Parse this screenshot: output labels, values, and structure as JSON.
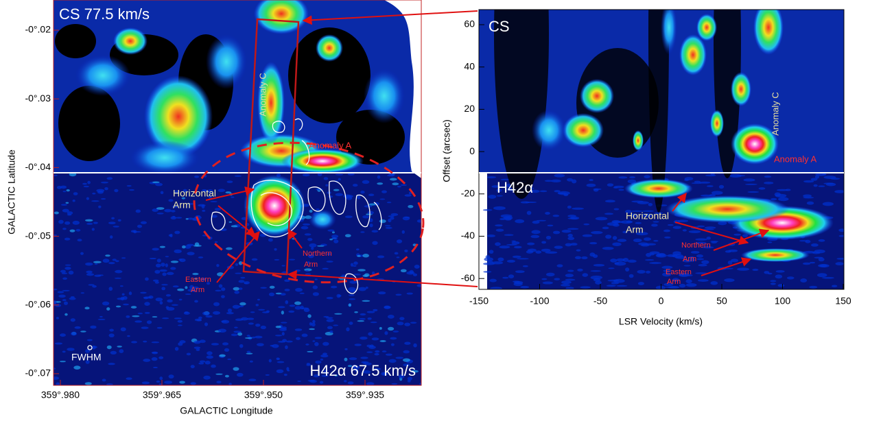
{
  "left_panel": {
    "top_label": "CS 77.5 km/s",
    "bottom_label": "H42α 67.5 km/s",
    "x_axis": {
      "title": "GALACTIC Longitude",
      "ticks": [
        "359°.980",
        "359°.965",
        "359°.950",
        "359°.935"
      ]
    },
    "y_axis": {
      "title": "GALACTIC Latitude",
      "ticks": [
        "-0°.02",
        "-0°.03",
        "-0°.04",
        "-0°.05",
        "-0°.06",
        "-0°.07"
      ]
    },
    "annotations": {
      "anomaly_c": "Anomaly C",
      "anomaly_a": "Anomaly A",
      "horizontal_arm": [
        "Horizontal",
        "Arm"
      ],
      "northern_arm": [
        "Northern",
        "Arm"
      ],
      "eastern_arm": [
        "Eastern",
        "Arm"
      ],
      "fwhm": "FWHM"
    }
  },
  "right_panel": {
    "top_label": "CS",
    "bottom_label": "H42α",
    "x_axis": {
      "title": "LSR Velocity (km/s)",
      "ticks": [
        -150,
        -100,
        -50,
        0,
        50,
        100,
        150
      ]
    },
    "y_axis": {
      "title": "Offset (arcsec)",
      "ticks": [
        60,
        40,
        20,
        0,
        -20,
        -40,
        -60
      ]
    },
    "annotations": {
      "anomaly_c": "Anomaly C",
      "anomaly_a": "Anomaly A",
      "horizontal_arm": [
        "Horizontal",
        "Arm"
      ],
      "northern_arm": [
        "Northern",
        "Arm"
      ],
      "eastern_arm": [
        "Eastern",
        "Arm"
      ]
    }
  }
}
